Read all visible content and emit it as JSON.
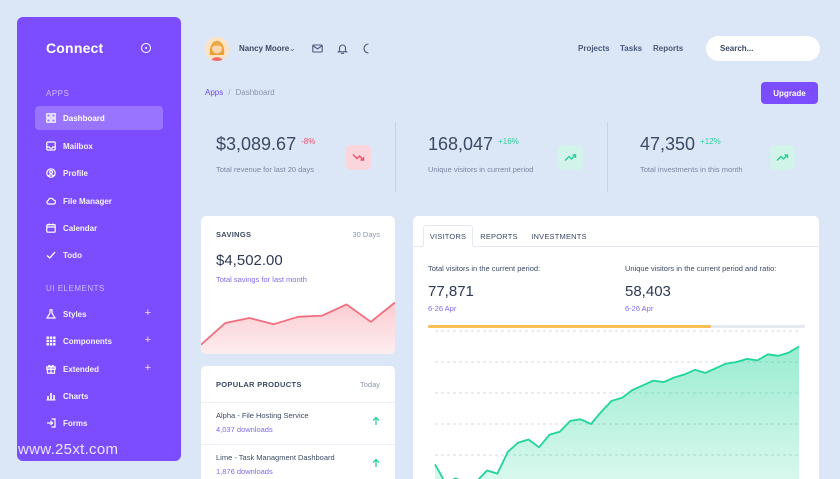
{
  "sidebar": {
    "brand": "Connect",
    "sections": [
      {
        "label": "APPS"
      },
      {
        "label": "UI ELEMENTS"
      }
    ],
    "apps": [
      {
        "label": "Dashboard",
        "icon": "grid-icon",
        "active": true
      },
      {
        "label": "Mailbox",
        "icon": "inbox-icon"
      },
      {
        "label": "Profile",
        "icon": "user-circle-icon"
      },
      {
        "label": "File Manager",
        "icon": "cloud-icon"
      },
      {
        "label": "Calendar",
        "icon": "calendar-icon"
      },
      {
        "label": "Todo",
        "icon": "check-icon"
      }
    ],
    "ui_elements": [
      {
        "label": "Styles",
        "icon": "flask-icon",
        "expandable": true
      },
      {
        "label": "Components",
        "icon": "dots-grid-icon",
        "expandable": true
      },
      {
        "label": "Extended",
        "icon": "gift-icon",
        "expandable": true
      },
      {
        "label": "Charts",
        "icon": "bar-chart-icon"
      },
      {
        "label": "Forms",
        "icon": "sign-in-icon"
      }
    ],
    "expand_symbol": "+"
  },
  "header": {
    "user_name": "Nancy Moore",
    "caret": "⌄",
    "links": [
      "Projects",
      "Tasks",
      "Reports"
    ],
    "search_placeholder": "Search..."
  },
  "breadcrumb": {
    "parent": "Apps",
    "separator": "/",
    "current": "Dashboard"
  },
  "upgrade_label": "Upgrade",
  "stats": [
    {
      "value": "$3,089.67",
      "change": "-8%",
      "label": "Total revenue for last 20 days",
      "trend": "down",
      "color": "#f0506e"
    },
    {
      "value": "168,047",
      "change": "+16%",
      "label": "Unique visitors in current period",
      "trend": "up",
      "color": "#2bd19a"
    },
    {
      "value": "47,350",
      "change": "+12%",
      "label": "Total investments in this month",
      "trend": "up",
      "color": "#2bd19a"
    }
  ],
  "savings": {
    "title": "SAVINGS",
    "period": "30 Days",
    "value": "$4,502.00",
    "label": "Total savings for last month"
  },
  "products": {
    "title": "POPULAR PRODUCTS",
    "period": "Today",
    "items": [
      {
        "name": "Alpha - File Hosting Service",
        "downloads": "4,037 downloads"
      },
      {
        "name": "Lime - Task Managment Dashboard",
        "downloads": "1,876 downloads"
      }
    ]
  },
  "visitors": {
    "tabs": [
      "VISITORS",
      "REPORTS",
      "INVESTMENTS"
    ],
    "left": {
      "label": "Total visitors in the current period:",
      "value": "77,871",
      "date": "6-26 Apr"
    },
    "right": {
      "label": "Unique visitors in the current period and ratio:",
      "value": "58,403",
      "date": "6-26 Apr"
    },
    "progress": 0.75
  },
  "chart_data": [
    {
      "type": "area",
      "series": [
        {
          "values": [
            15,
            50,
            58,
            48,
            60,
            62,
            80,
            52,
            83
          ]
        }
      ],
      "ylim": [
        0,
        100
      ],
      "grid": false,
      "color": "#f26d7d"
    },
    {
      "type": "area",
      "series": [
        {
          "values": [
            14,
            2,
            5,
            1,
            3,
            10,
            8,
            22,
            28,
            30,
            25,
            33,
            35,
            42,
            43,
            40,
            48,
            55,
            57,
            62,
            65,
            68,
            67,
            70,
            72,
            75,
            73,
            76,
            79,
            80,
            82,
            81,
            85,
            84,
            86,
            90
          ]
        }
      ],
      "ylim": [
        0,
        100
      ],
      "grid": true,
      "color": "#1fd59a"
    }
  ],
  "watermark": "www.25xt.com"
}
